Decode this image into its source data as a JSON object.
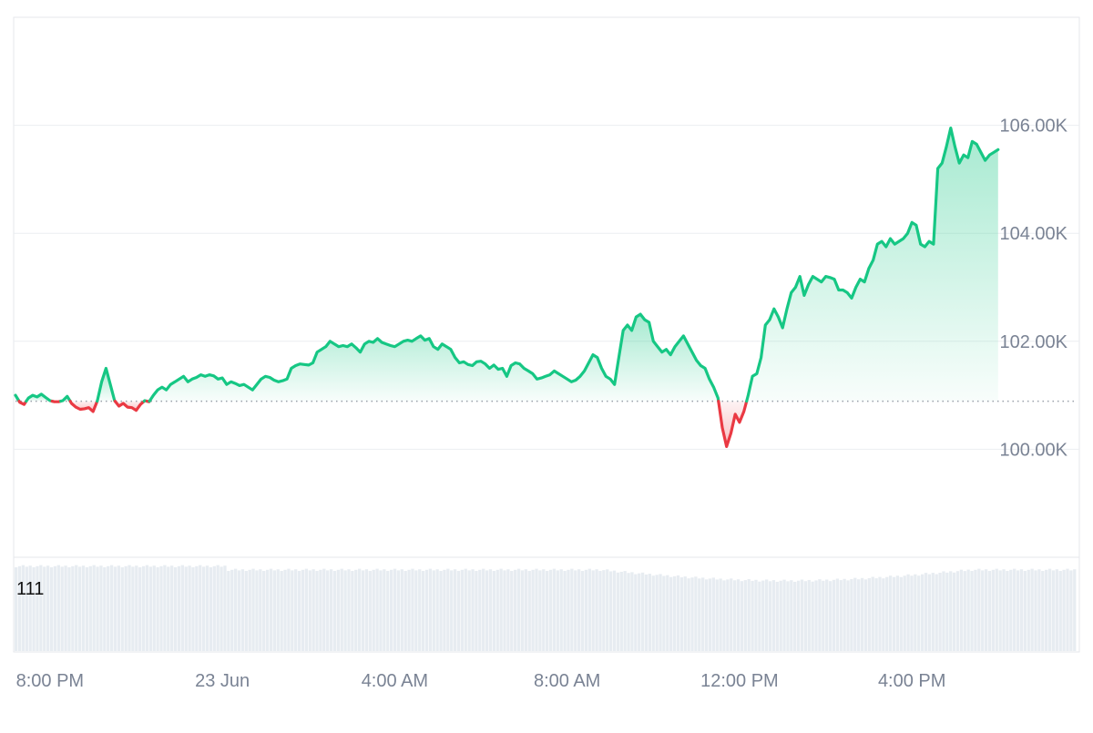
{
  "chart_data": {
    "type": "line",
    "baseline": 100890,
    "ylim": [
      98000,
      108000
    ],
    "y_ticks": [
      {
        "value": 100000,
        "label": "100.00K"
      },
      {
        "value": 102000,
        "label": "102.00K"
      },
      {
        "value": 104000,
        "label": "104.00K"
      },
      {
        "value": 106000,
        "label": "106.00K"
      }
    ],
    "x_ticks": [
      {
        "t": 0.1,
        "label": "8:00 PM"
      },
      {
        "t": 2.1,
        "label": "23 Jun"
      },
      {
        "t": 4.1,
        "label": "4:00 AM"
      },
      {
        "t": 6.1,
        "label": "8:00 AM"
      },
      {
        "t": 8.1,
        "label": "12:00 PM"
      },
      {
        "t": 10.1,
        "label": "4:00 PM"
      }
    ],
    "x_range_hours": [
      -0.3,
      12.0
    ],
    "x_unit": "hours since 8:00 PM",
    "up_color": "#16c784",
    "down_color": "#ea3943",
    "volume_label": "111",
    "series": [
      {
        "values": [
          [
            -0.3,
            101000
          ],
          [
            -0.25,
            100870
          ],
          [
            -0.2,
            100830
          ],
          [
            -0.15,
            100950
          ],
          [
            -0.1,
            101000
          ],
          [
            -0.05,
            100970
          ],
          [
            0.0,
            101020
          ],
          [
            0.05,
            100960
          ],
          [
            0.1,
            100900
          ],
          [
            0.15,
            100880
          ],
          [
            0.2,
            100880
          ],
          [
            0.25,
            100900
          ],
          [
            0.3,
            100980
          ],
          [
            0.35,
            100850
          ],
          [
            0.4,
            100780
          ],
          [
            0.45,
            100740
          ],
          [
            0.5,
            100750
          ],
          [
            0.55,
            100770
          ],
          [
            0.6,
            100700
          ],
          [
            0.65,
            100900
          ],
          [
            0.7,
            101250
          ],
          [
            0.75,
            101500
          ],
          [
            0.8,
            101200
          ],
          [
            0.85,
            100900
          ],
          [
            0.9,
            100800
          ],
          [
            0.95,
            100850
          ],
          [
            1.0,
            100780
          ],
          [
            1.05,
            100770
          ],
          [
            1.1,
            100720
          ],
          [
            1.15,
            100830
          ],
          [
            1.2,
            100900
          ],
          [
            1.25,
            100880
          ],
          [
            1.3,
            101000
          ],
          [
            1.35,
            101100
          ],
          [
            1.4,
            101150
          ],
          [
            1.45,
            101100
          ],
          [
            1.5,
            101200
          ],
          [
            1.55,
            101250
          ],
          [
            1.6,
            101300
          ],
          [
            1.65,
            101350
          ],
          [
            1.7,
            101250
          ],
          [
            1.75,
            101300
          ],
          [
            1.8,
            101330
          ],
          [
            1.85,
            101380
          ],
          [
            1.9,
            101350
          ],
          [
            1.95,
            101380
          ],
          [
            2.0,
            101360
          ],
          [
            2.05,
            101300
          ],
          [
            2.1,
            101320
          ],
          [
            2.15,
            101200
          ],
          [
            2.2,
            101250
          ],
          [
            2.25,
            101220
          ],
          [
            2.3,
            101180
          ],
          [
            2.35,
            101200
          ],
          [
            2.4,
            101150
          ],
          [
            2.45,
            101100
          ],
          [
            2.5,
            101200
          ],
          [
            2.55,
            101300
          ],
          [
            2.6,
            101350
          ],
          [
            2.65,
            101330
          ],
          [
            2.7,
            101280
          ],
          [
            2.75,
            101250
          ],
          [
            2.8,
            101270
          ],
          [
            2.85,
            101300
          ],
          [
            2.9,
            101500
          ],
          [
            2.95,
            101550
          ],
          [
            3.0,
            101580
          ],
          [
            3.05,
            101570
          ],
          [
            3.1,
            101560
          ],
          [
            3.15,
            101600
          ],
          [
            3.2,
            101800
          ],
          [
            3.25,
            101850
          ],
          [
            3.3,
            101900
          ],
          [
            3.35,
            102000
          ],
          [
            3.4,
            101950
          ],
          [
            3.45,
            101900
          ],
          [
            3.5,
            101920
          ],
          [
            3.55,
            101900
          ],
          [
            3.6,
            101950
          ],
          [
            3.65,
            101880
          ],
          [
            3.7,
            101800
          ],
          [
            3.75,
            101950
          ],
          [
            3.8,
            102000
          ],
          [
            3.85,
            101980
          ],
          [
            3.9,
            102050
          ],
          [
            3.95,
            101980
          ],
          [
            4.0,
            101950
          ],
          [
            4.05,
            101920
          ],
          [
            4.1,
            101900
          ],
          [
            4.15,
            101950
          ],
          [
            4.2,
            102000
          ],
          [
            4.25,
            102020
          ],
          [
            4.3,
            102000
          ],
          [
            4.35,
            102050
          ],
          [
            4.4,
            102100
          ],
          [
            4.45,
            102020
          ],
          [
            4.5,
            102050
          ],
          [
            4.55,
            101900
          ],
          [
            4.6,
            101850
          ],
          [
            4.65,
            101950
          ],
          [
            4.7,
            101900
          ],
          [
            4.75,
            101850
          ],
          [
            4.8,
            101700
          ],
          [
            4.85,
            101600
          ],
          [
            4.9,
            101620
          ],
          [
            4.95,
            101570
          ],
          [
            5.0,
            101550
          ],
          [
            5.05,
            101620
          ],
          [
            5.1,
            101630
          ],
          [
            5.15,
            101580
          ],
          [
            5.2,
            101500
          ],
          [
            5.25,
            101560
          ],
          [
            5.3,
            101480
          ],
          [
            5.35,
            101500
          ],
          [
            5.4,
            101350
          ],
          [
            5.45,
            101550
          ],
          [
            5.5,
            101600
          ],
          [
            5.55,
            101580
          ],
          [
            5.6,
            101500
          ],
          [
            5.65,
            101450
          ],
          [
            5.7,
            101400
          ],
          [
            5.75,
            101300
          ],
          [
            5.8,
            101320
          ],
          [
            5.85,
            101350
          ],
          [
            5.9,
            101380
          ],
          [
            5.95,
            101450
          ],
          [
            6.0,
            101400
          ],
          [
            6.05,
            101350
          ],
          [
            6.1,
            101300
          ],
          [
            6.15,
            101250
          ],
          [
            6.2,
            101280
          ],
          [
            6.25,
            101350
          ],
          [
            6.3,
            101450
          ],
          [
            6.35,
            101600
          ],
          [
            6.4,
            101750
          ],
          [
            6.45,
            101700
          ],
          [
            6.5,
            101500
          ],
          [
            6.55,
            101350
          ],
          [
            6.6,
            101300
          ],
          [
            6.65,
            101200
          ],
          [
            6.7,
            101700
          ],
          [
            6.75,
            102200
          ],
          [
            6.8,
            102300
          ],
          [
            6.85,
            102200
          ],
          [
            6.9,
            102450
          ],
          [
            6.95,
            102500
          ],
          [
            7.0,
            102400
          ],
          [
            7.05,
            102350
          ],
          [
            7.1,
            102000
          ],
          [
            7.15,
            101900
          ],
          [
            7.2,
            101800
          ],
          [
            7.25,
            101850
          ],
          [
            7.3,
            101750
          ],
          [
            7.35,
            101900
          ],
          [
            7.4,
            102000
          ],
          [
            7.45,
            102100
          ],
          [
            7.5,
            101950
          ],
          [
            7.55,
            101800
          ],
          [
            7.6,
            101650
          ],
          [
            7.65,
            101550
          ],
          [
            7.7,
            101500
          ],
          [
            7.75,
            101300
          ],
          [
            7.8,
            101150
          ],
          [
            7.85,
            100950
          ],
          [
            7.9,
            100400
          ],
          [
            7.95,
            100050
          ],
          [
            8.0,
            100300
          ],
          [
            8.05,
            100650
          ],
          [
            8.1,
            100500
          ],
          [
            8.15,
            100700
          ],
          [
            8.2,
            101000
          ],
          [
            8.25,
            101350
          ],
          [
            8.3,
            101400
          ],
          [
            8.35,
            101700
          ],
          [
            8.4,
            102300
          ],
          [
            8.45,
            102400
          ],
          [
            8.5,
            102600
          ],
          [
            8.55,
            102450
          ],
          [
            8.6,
            102250
          ],
          [
            8.65,
            102600
          ],
          [
            8.7,
            102900
          ],
          [
            8.75,
            103000
          ],
          [
            8.8,
            103200
          ],
          [
            8.85,
            102850
          ],
          [
            8.9,
            103050
          ],
          [
            8.95,
            103200
          ],
          [
            9.0,
            103150
          ],
          [
            9.05,
            103100
          ],
          [
            9.1,
            103200
          ],
          [
            9.15,
            103180
          ],
          [
            9.2,
            103150
          ],
          [
            9.25,
            102950
          ],
          [
            9.3,
            102950
          ],
          [
            9.35,
            102900
          ],
          [
            9.4,
            102800
          ],
          [
            9.45,
            103000
          ],
          [
            9.5,
            103150
          ],
          [
            9.55,
            103100
          ],
          [
            9.6,
            103350
          ],
          [
            9.65,
            103500
          ],
          [
            9.7,
            103800
          ],
          [
            9.75,
            103850
          ],
          [
            9.8,
            103750
          ],
          [
            9.85,
            103900
          ],
          [
            9.9,
            103800
          ],
          [
            9.95,
            103850
          ],
          [
            10.0,
            103900
          ],
          [
            10.05,
            104000
          ],
          [
            10.1,
            104200
          ],
          [
            10.15,
            104150
          ],
          [
            10.2,
            103800
          ],
          [
            10.25,
            103750
          ],
          [
            10.3,
            103850
          ],
          [
            10.35,
            103800
          ],
          [
            10.4,
            105200
          ],
          [
            10.45,
            105300
          ],
          [
            10.5,
            105600
          ],
          [
            10.55,
            105950
          ],
          [
            10.6,
            105600
          ],
          [
            10.65,
            105300
          ],
          [
            10.7,
            105450
          ],
          [
            10.75,
            105400
          ],
          [
            10.8,
            105700
          ],
          [
            10.85,
            105650
          ],
          [
            10.9,
            105500
          ],
          [
            10.95,
            105350
          ],
          [
            11.0,
            105450
          ],
          [
            11.05,
            105500
          ],
          [
            11.1,
            105550
          ]
        ]
      }
    ]
  }
}
